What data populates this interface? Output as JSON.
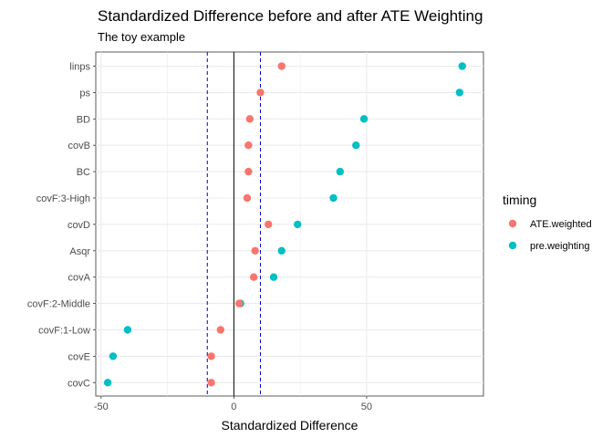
{
  "chart_data": {
    "type": "scatter",
    "title": "Standardized Difference before and after ATE Weighting",
    "subtitle": "The toy example",
    "xlabel": "Standardized Difference",
    "ylabel": "",
    "xlim": [
      -52,
      94
    ],
    "x_ticks": [
      -50,
      0,
      50
    ],
    "x_tick_labels": [
      "-50",
      "0",
      "50"
    ],
    "vlines": [
      {
        "x": 0,
        "style": "solid",
        "color": "#000000"
      },
      {
        "x": -10,
        "style": "dashed",
        "color": "#0000CC"
      },
      {
        "x": 10,
        "style": "dashed",
        "color": "#0000CC"
      }
    ],
    "categories": [
      "linps",
      "ps",
      "BD",
      "covB",
      "BC",
      "covF:3-High",
      "covD",
      "Asqr",
      "covA",
      "covF:2-Middle",
      "covF:1-Low",
      "covE",
      "covC"
    ],
    "legend_title": "timing",
    "legend_position": "right",
    "series": [
      {
        "name": "ATE.weighted",
        "color": "#F8766D",
        "values": [
          18,
          10,
          6,
          5.5,
          5.5,
          5,
          13,
          8,
          7.5,
          2,
          -5,
          -8.5,
          -8.5
        ]
      },
      {
        "name": "pre.weighting",
        "color": "#00BFC4",
        "values": [
          86,
          85,
          49,
          46,
          40,
          37.5,
          24,
          18,
          15,
          2.5,
          -40,
          -45.5,
          -47.5
        ]
      }
    ]
  }
}
